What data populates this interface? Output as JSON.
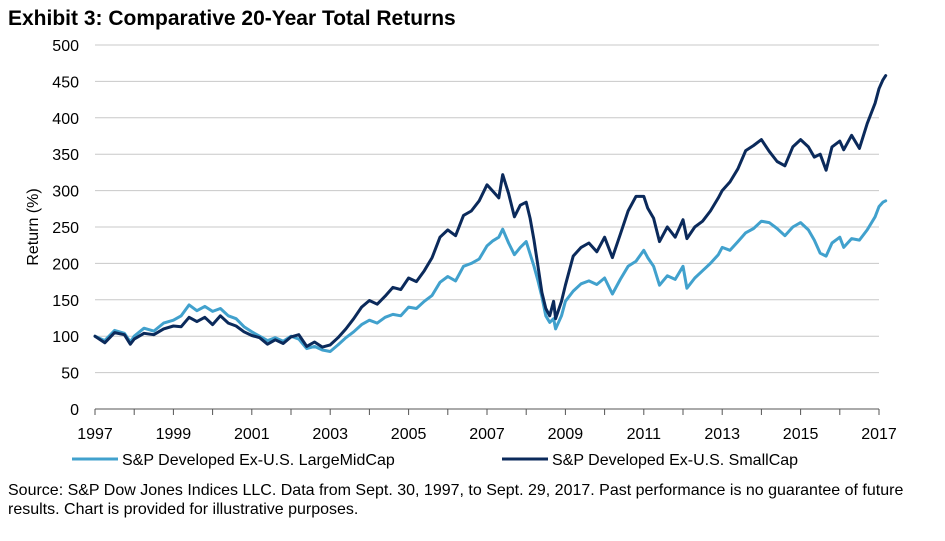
{
  "chart_data": {
    "type": "line",
    "title": "Exhibit 3: Comparative 20-Year Total Returns",
    "xlabel": "",
    "ylabel": "Return (%)",
    "ylim": [
      0,
      500
    ],
    "xlim": [
      1997,
      2017
    ],
    "yticks": [
      "0",
      "50",
      "100",
      "150",
      "200",
      "250",
      "300",
      "350",
      "400",
      "450",
      "500"
    ],
    "xticks": [
      "1997",
      "1999",
      "2001",
      "2003",
      "2005",
      "2007",
      "2009",
      "2011",
      "2013",
      "2015",
      "2017"
    ],
    "grid": true,
    "legend_position": "bottom",
    "series": [
      {
        "name": "S&P Developed Ex-U.S. LargeMidCap",
        "color": "#41a1cd",
        "points": [
          [
            1997.0,
            100
          ],
          [
            1997.25,
            94
          ],
          [
            1997.5,
            108
          ],
          [
            1997.75,
            104
          ],
          [
            1997.9,
            92
          ],
          [
            1998.0,
            100
          ],
          [
            1998.25,
            111
          ],
          [
            1998.5,
            107
          ],
          [
            1998.75,
            118
          ],
          [
            1999.0,
            122
          ],
          [
            1999.2,
            128
          ],
          [
            1999.4,
            143
          ],
          [
            1999.6,
            135
          ],
          [
            1999.8,
            141
          ],
          [
            2000.0,
            134
          ],
          [
            2000.2,
            138
          ],
          [
            2000.4,
            128
          ],
          [
            2000.6,
            124
          ],
          [
            2000.8,
            113
          ],
          [
            2001.0,
            106
          ],
          [
            2001.2,
            100
          ],
          [
            2001.4,
            94
          ],
          [
            2001.6,
            98
          ],
          [
            2001.8,
            93
          ],
          [
            2002.0,
            100
          ],
          [
            2002.2,
            96
          ],
          [
            2002.4,
            83
          ],
          [
            2002.6,
            86
          ],
          [
            2002.8,
            81
          ],
          [
            2003.0,
            79
          ],
          [
            2003.2,
            88
          ],
          [
            2003.4,
            98
          ],
          [
            2003.6,
            106
          ],
          [
            2003.8,
            116
          ],
          [
            2004.0,
            122
          ],
          [
            2004.2,
            118
          ],
          [
            2004.4,
            126
          ],
          [
            2004.6,
            130
          ],
          [
            2004.8,
            128
          ],
          [
            2005.0,
            140
          ],
          [
            2005.2,
            138
          ],
          [
            2005.4,
            148
          ],
          [
            2005.6,
            156
          ],
          [
            2005.8,
            174
          ],
          [
            2006.0,
            182
          ],
          [
            2006.2,
            176
          ],
          [
            2006.4,
            196
          ],
          [
            2006.6,
            200
          ],
          [
            2006.8,
            206
          ],
          [
            2007.0,
            224
          ],
          [
            2007.15,
            231
          ],
          [
            2007.3,
            236
          ],
          [
            2007.4,
            247
          ],
          [
            2007.55,
            228
          ],
          [
            2007.7,
            212
          ],
          [
            2007.85,
            222
          ],
          [
            2008.0,
            230
          ],
          [
            2008.1,
            213
          ],
          [
            2008.2,
            196
          ],
          [
            2008.3,
            176
          ],
          [
            2008.4,
            154
          ],
          [
            2008.5,
            128
          ],
          [
            2008.6,
            119
          ],
          [
            2008.7,
            124
          ],
          [
            2008.75,
            110
          ],
          [
            2008.9,
            128
          ],
          [
            2009.0,
            148
          ],
          [
            2009.2,
            162
          ],
          [
            2009.4,
            172
          ],
          [
            2009.6,
            176
          ],
          [
            2009.8,
            171
          ],
          [
            2010.0,
            180
          ],
          [
            2010.2,
            158
          ],
          [
            2010.4,
            178
          ],
          [
            2010.6,
            196
          ],
          [
            2010.8,
            203
          ],
          [
            2011.0,
            218
          ],
          [
            2011.1,
            208
          ],
          [
            2011.25,
            196
          ],
          [
            2011.4,
            170
          ],
          [
            2011.6,
            183
          ],
          [
            2011.8,
            178
          ],
          [
            2012.0,
            196
          ],
          [
            2012.1,
            166
          ],
          [
            2012.3,
            180
          ],
          [
            2012.5,
            190
          ],
          [
            2012.7,
            200
          ],
          [
            2012.9,
            212
          ],
          [
            2013.0,
            222
          ],
          [
            2013.2,
            218
          ],
          [
            2013.4,
            230
          ],
          [
            2013.6,
            242
          ],
          [
            2013.8,
            248
          ],
          [
            2014.0,
            258
          ],
          [
            2014.2,
            256
          ],
          [
            2014.4,
            248
          ],
          [
            2014.6,
            238
          ],
          [
            2014.8,
            250
          ],
          [
            2015.0,
            256
          ],
          [
            2015.2,
            246
          ],
          [
            2015.35,
            232
          ],
          [
            2015.5,
            214
          ],
          [
            2015.65,
            210
          ],
          [
            2015.8,
            228
          ],
          [
            2016.0,
            236
          ],
          [
            2016.1,
            222
          ],
          [
            2016.3,
            234
          ],
          [
            2016.5,
            232
          ],
          [
            2016.7,
            246
          ],
          [
            2016.9,
            264
          ],
          [
            2017.0,
            278
          ],
          [
            2017.1,
            284
          ],
          [
            2017.17,
            286
          ]
        ]
      },
      {
        "name": "S&P Developed Ex-U.S. SmallCap",
        "color": "#0b2a5b",
        "points": [
          [
            1997.0,
            100
          ],
          [
            1997.25,
            91
          ],
          [
            1997.5,
            105
          ],
          [
            1997.75,
            102
          ],
          [
            1997.9,
            89
          ],
          [
            1998.0,
            96
          ],
          [
            1998.25,
            104
          ],
          [
            1998.5,
            102
          ],
          [
            1998.75,
            110
          ],
          [
            1999.0,
            114
          ],
          [
            1999.2,
            113
          ],
          [
            1999.4,
            126
          ],
          [
            1999.6,
            120
          ],
          [
            1999.8,
            126
          ],
          [
            2000.0,
            116
          ],
          [
            2000.2,
            128
          ],
          [
            2000.4,
            118
          ],
          [
            2000.6,
            114
          ],
          [
            2000.8,
            106
          ],
          [
            2001.0,
            101
          ],
          [
            2001.2,
            98
          ],
          [
            2001.4,
            89
          ],
          [
            2001.6,
            95
          ],
          [
            2001.8,
            90
          ],
          [
            2002.0,
            99
          ],
          [
            2002.2,
            102
          ],
          [
            2002.4,
            86
          ],
          [
            2002.6,
            92
          ],
          [
            2002.8,
            85
          ],
          [
            2003.0,
            88
          ],
          [
            2003.2,
            98
          ],
          [
            2003.4,
            110
          ],
          [
            2003.6,
            124
          ],
          [
            2003.8,
            140
          ],
          [
            2004.0,
            149
          ],
          [
            2004.2,
            144
          ],
          [
            2004.4,
            155
          ],
          [
            2004.6,
            167
          ],
          [
            2004.8,
            164
          ],
          [
            2005.0,
            180
          ],
          [
            2005.2,
            175
          ],
          [
            2005.4,
            190
          ],
          [
            2005.6,
            208
          ],
          [
            2005.8,
            236
          ],
          [
            2006.0,
            246
          ],
          [
            2006.2,
            238
          ],
          [
            2006.4,
            266
          ],
          [
            2006.6,
            272
          ],
          [
            2006.8,
            286
          ],
          [
            2007.0,
            308
          ],
          [
            2007.15,
            299
          ],
          [
            2007.3,
            290
          ],
          [
            2007.4,
            322
          ],
          [
            2007.55,
            296
          ],
          [
            2007.7,
            264
          ],
          [
            2007.85,
            280
          ],
          [
            2008.0,
            284
          ],
          [
            2008.1,
            262
          ],
          [
            2008.2,
            232
          ],
          [
            2008.3,
            196
          ],
          [
            2008.4,
            160
          ],
          [
            2008.5,
            138
          ],
          [
            2008.6,
            128
          ],
          [
            2008.7,
            148
          ],
          [
            2008.75,
            124
          ],
          [
            2008.9,
            148
          ],
          [
            2009.0,
            170
          ],
          [
            2009.2,
            210
          ],
          [
            2009.4,
            222
          ],
          [
            2009.6,
            228
          ],
          [
            2009.8,
            216
          ],
          [
            2010.0,
            236
          ],
          [
            2010.2,
            208
          ],
          [
            2010.4,
            240
          ],
          [
            2010.6,
            272
          ],
          [
            2010.8,
            292
          ],
          [
            2011.0,
            292
          ],
          [
            2011.1,
            276
          ],
          [
            2011.25,
            262
          ],
          [
            2011.4,
            230
          ],
          [
            2011.6,
            250
          ],
          [
            2011.8,
            236
          ],
          [
            2012.0,
            260
          ],
          [
            2012.1,
            234
          ],
          [
            2012.3,
            250
          ],
          [
            2012.5,
            258
          ],
          [
            2012.7,
            272
          ],
          [
            2012.9,
            290
          ],
          [
            2013.0,
            300
          ],
          [
            2013.2,
            312
          ],
          [
            2013.4,
            330
          ],
          [
            2013.6,
            355
          ],
          [
            2013.8,
            362
          ],
          [
            2014.0,
            370
          ],
          [
            2014.2,
            354
          ],
          [
            2014.4,
            340
          ],
          [
            2014.6,
            334
          ],
          [
            2014.8,
            360
          ],
          [
            2015.0,
            370
          ],
          [
            2015.2,
            360
          ],
          [
            2015.35,
            346
          ],
          [
            2015.5,
            350
          ],
          [
            2015.65,
            328
          ],
          [
            2015.8,
            360
          ],
          [
            2016.0,
            368
          ],
          [
            2016.1,
            356
          ],
          [
            2016.3,
            376
          ],
          [
            2016.5,
            358
          ],
          [
            2016.7,
            392
          ],
          [
            2016.9,
            420
          ],
          [
            2017.0,
            440
          ],
          [
            2017.1,
            452
          ],
          [
            2017.17,
            458
          ]
        ]
      }
    ]
  },
  "source_note": "Source: S&P Dow Jones Indices LLC.  Data from Sept. 30, 1997, to Sept. 29, 2017.  Past performance is no guarantee of future results.  Chart is provided for illustrative purposes."
}
